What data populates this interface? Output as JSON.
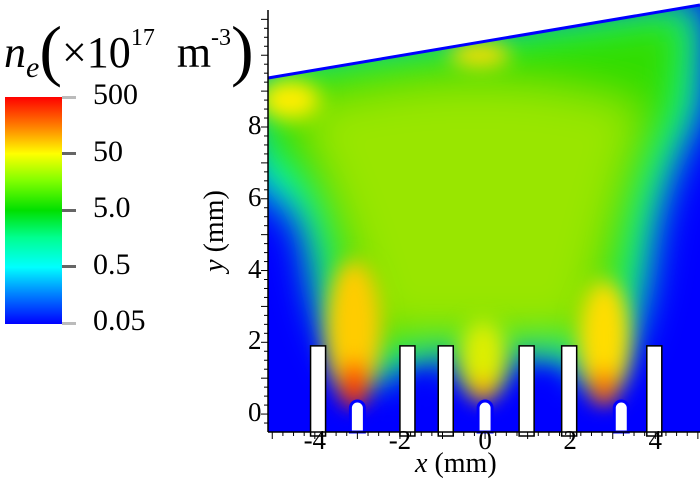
{
  "chart_data": {
    "type": "heatmap",
    "title": {
      "symbol": "n",
      "subscript": "e",
      "unit_prefix": "×10",
      "exponent": "17",
      "unit": "m",
      "unit_exponent": "-3"
    },
    "xlabel": {
      "var": "x",
      "unit": "(mm)"
    },
    "ylabel": {
      "var": "y",
      "unit": "(mm)"
    },
    "xlim": [
      -5.1,
      5.05
    ],
    "ylim": [
      -0.5,
      11.4
    ],
    "x_ticks": [
      "-4",
      "-2",
      "0",
      "2",
      "4"
    ],
    "y_ticks": [
      "0",
      "2",
      "4",
      "6",
      "8"
    ],
    "colorbar": {
      "scale": "log",
      "range": [
        0.05,
        500
      ],
      "tick_labels": [
        "500",
        "50",
        "5.0",
        "0.5",
        "0.05"
      ],
      "colors": [
        "#ff0000",
        "#ffff00",
        "#00e000",
        "#00ffff",
        "#0000ff"
      ]
    },
    "electrodes_x_mm": [
      -4.1,
      -2.0,
      -1.1,
      0.8,
      1.8,
      3.8
    ],
    "electrode_top_mm": 1.9,
    "peaks": [
      {
        "x": -3.0,
        "y": 0.7,
        "value_approx": 500
      },
      {
        "x": 0.0,
        "y": 0.8,
        "value_approx": 100
      },
      {
        "x": 3.2,
        "y": 0.8,
        "value_approx": 200
      }
    ]
  }
}
